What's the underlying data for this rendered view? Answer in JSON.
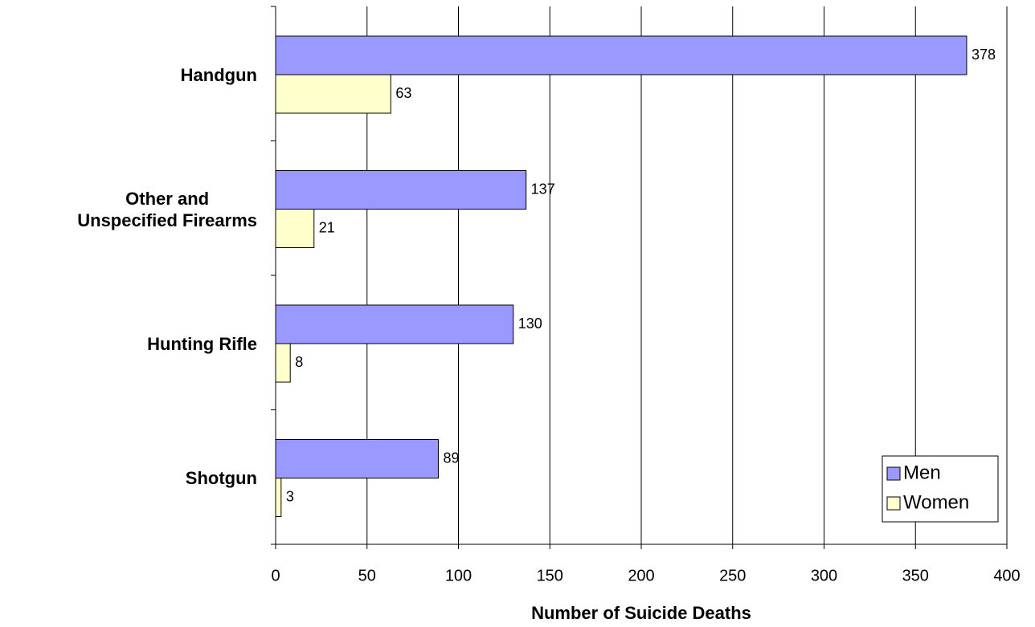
{
  "chart_data": {
    "type": "hbar",
    "categories": [
      "Handgun",
      "Other and\nUnspecified Firearms",
      "Hunting Rifle",
      "Shotgun"
    ],
    "series": [
      {
        "name": "Men",
        "color": "#9999ff",
        "values": [
          378,
          137,
          130,
          89
        ]
      },
      {
        "name": "Women",
        "color": "#ffffcc",
        "values": [
          63,
          21,
          8,
          3
        ]
      }
    ],
    "x_label": "Number of Suicide Deaths",
    "xlim": [
      0,
      400
    ],
    "xticks": [
      0,
      50,
      100,
      150,
      200,
      250,
      300,
      350,
      400
    ],
    "grid": true,
    "legend": "lower right"
  }
}
